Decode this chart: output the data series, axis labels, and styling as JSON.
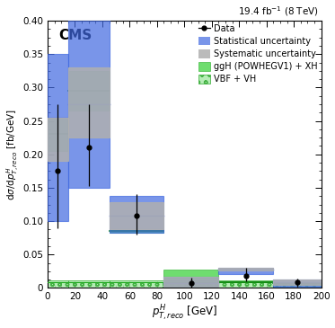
{
  "title_cms": "CMS",
  "title_lumi": "19.4 fb$^{-1}$ (8 TeV)",
  "xlabel": "$p^{H}_{T,reco}$ [GeV]",
  "ylabel": "d$\\sigma$/d$p^{H}_{T,reco}$ [fb/GeV]",
  "xlim": [
    0,
    200
  ],
  "ylim": [
    0,
    0.4
  ],
  "bin_edges": [
    0,
    15,
    45,
    85,
    125,
    165,
    200
  ],
  "bin_centers": [
    7.5,
    30,
    65,
    105,
    145,
    182.5
  ],
  "data_values": [
    0.175,
    0.21,
    0.108,
    0.007,
    0.018,
    0.008
  ],
  "data_err_up": [
    0.1,
    0.065,
    0.032,
    0.008,
    0.012,
    0.006
  ],
  "data_err_down": [
    0.085,
    0.058,
    0.028,
    0.012,
    0.008,
    0.006
  ],
  "stat_bot": [
    0.1,
    0.15,
    0.083,
    -0.018,
    0.021,
    0.002
  ],
  "stat_top": [
    0.35,
    0.405,
    0.138,
    0.017,
    0.03,
    0.012
  ],
  "stat_mid": [
    0.255,
    0.275,
    0.108,
    0.007,
    0.028,
    0.008
  ],
  "syst_bot": [
    0.19,
    0.225,
    0.088,
    -0.018,
    0.026,
    0.004
  ],
  "syst_top": [
    0.255,
    0.33,
    0.128,
    0.017,
    0.03,
    0.012
  ],
  "syst_mid": [
    0.255,
    0.275,
    0.108,
    0.007,
    0.028,
    0.008
  ],
  "ggh_bot": [
    0.205,
    0.265,
    0.083,
    -0.003,
    0.008,
    0.006
  ],
  "ggh_top": [
    0.255,
    0.325,
    0.087,
    0.027,
    0.01,
    0.008
  ],
  "ggh_mid": [
    0.231,
    0.295,
    0.085,
    0.0,
    0.009,
    0.007
  ],
  "vbf_bot": [
    0.0,
    0.0,
    0.0,
    0.0,
    0.0,
    0.0
  ],
  "vbf_top": [
    0.011,
    0.011,
    0.011,
    0.011,
    0.011,
    0.007
  ],
  "vbf_mid": [
    0.008,
    0.008,
    0.008,
    0.008,
    0.008,
    0.005
  ],
  "stat_color": "#4169e1",
  "syst_color": "#b0b0b0",
  "ggh_color": "#22cc22",
  "vbf_hatch_color": "#aaeaaa"
}
